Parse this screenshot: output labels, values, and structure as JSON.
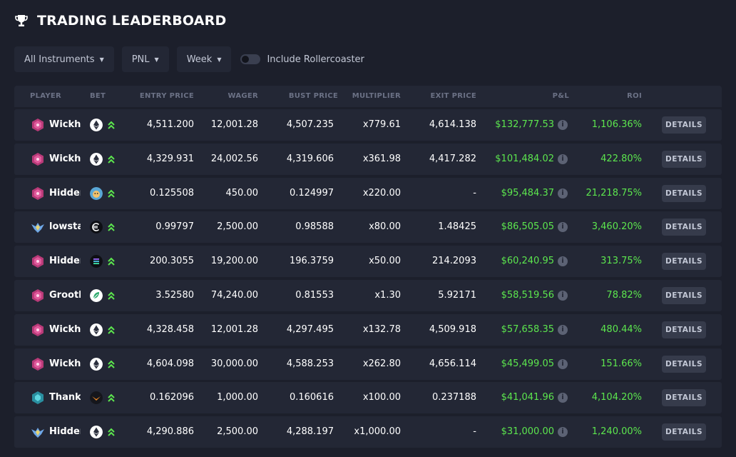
{
  "header": {
    "title": "TRADING LEADERBOARD",
    "icon": "trophy-icon"
  },
  "filters": {
    "instruments": "All Instruments",
    "metric": "PNL",
    "period": "Week",
    "toggle_label": "Include Rollercoaster",
    "toggle_on": false
  },
  "columns": {
    "player": "PLAYER",
    "bet": "BET",
    "entry_price": "ENTRY PRICE",
    "wager": "WAGER",
    "bust_price": "BUST PRICE",
    "multiplier": "MULTIPLIER",
    "exit_price": "EXIT PRICE",
    "pnl": "P&L",
    "roi": "ROI"
  },
  "details_label": "DETAILS",
  "colors": {
    "positive": "#5ce64e",
    "background": "#1c1f2b",
    "row": "#232735"
  },
  "rows": [
    {
      "player": "Wickhu",
      "avatar": "pink-hexagon",
      "coin": "ethereum",
      "entry": "4,511.200",
      "wager": "12,001.28",
      "bust": "4,507.235",
      "multiplier": "x779.61",
      "exit": "4,614.138",
      "pnl": "$132,777.53",
      "roi": "1,106.36%"
    },
    {
      "player": "Wickhu",
      "avatar": "pink-hexagon",
      "coin": "ethereum",
      "entry": "4,329.931",
      "wager": "24,002.56",
      "bust": "4,319.606",
      "multiplier": "x361.98",
      "exit": "4,417.282",
      "pnl": "$101,484.02",
      "roi": "422.80%"
    },
    {
      "player": "Hidden",
      "avatar": "pink-hexagon",
      "coin": "doge",
      "entry": "0.125508",
      "wager": "450.00",
      "bust": "0.124997",
      "multiplier": "x220.00",
      "exit": "-",
      "pnl": "$95,484.37",
      "roi": "21,218.75%"
    },
    {
      "player": "lowstal",
      "avatar": "winged-badge",
      "coin": "euro-c",
      "entry": "0.99797",
      "wager": "2,500.00",
      "bust": "0.98588",
      "multiplier": "x80.00",
      "exit": "1.48425",
      "pnl": "$86,505.05",
      "roi": "3,460.20%"
    },
    {
      "player": "Hidden",
      "avatar": "pink-hexagon",
      "coin": "solana",
      "entry": "200.3055",
      "wager": "19,200.00",
      "bust": "196.3759",
      "multiplier": "x50.00",
      "exit": "214.2093",
      "pnl": "$60,240.95",
      "roi": "313.75%"
    },
    {
      "player": "Grooth",
      "avatar": "pink-hexagon",
      "coin": "leaf",
      "entry": "3.52580",
      "wager": "74,240.00",
      "bust": "0.81553",
      "multiplier": "x1.30",
      "exit": "5.92171",
      "pnl": "$58,519.56",
      "roi": "78.82%"
    },
    {
      "player": "Wickhu",
      "avatar": "pink-hexagon",
      "coin": "ethereum",
      "entry": "4,328.458",
      "wager": "12,001.28",
      "bust": "4,297.495",
      "multiplier": "x132.78",
      "exit": "4,509.918",
      "pnl": "$57,658.35",
      "roi": "480.44%"
    },
    {
      "player": "Wickhu",
      "avatar": "pink-hexagon",
      "coin": "ethereum",
      "entry": "4,604.098",
      "wager": "30,000.00",
      "bust": "4,588.253",
      "multiplier": "x262.80",
      "exit": "4,656.114",
      "pnl": "$45,499.05",
      "roi": "151.66%"
    },
    {
      "player": "Thanks",
      "avatar": "teal-badge",
      "coin": "orange-wing",
      "entry": "0.162096",
      "wager": "1,000.00",
      "bust": "0.160616",
      "multiplier": "x100.00",
      "exit": "0.237188",
      "pnl": "$41,041.96",
      "roi": "4,104.20%"
    },
    {
      "player": "Hidden",
      "avatar": "winged-badge",
      "coin": "ethereum",
      "entry": "4,290.886",
      "wager": "2,500.00",
      "bust": "4,288.197",
      "multiplier": "x1,000.00",
      "exit": "-",
      "pnl": "$31,000.00",
      "roi": "1,240.00%"
    }
  ]
}
